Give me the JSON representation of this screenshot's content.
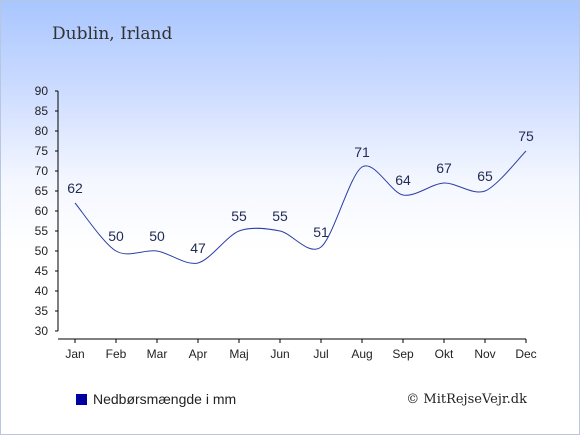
{
  "chart_data": {
    "type": "line",
    "title": "Dublin, Irland",
    "categories": [
      "Jan",
      "Feb",
      "Mar",
      "Apr",
      "Maj",
      "Jun",
      "Jul",
      "Aug",
      "Sep",
      "Okt",
      "Nov",
      "Dec"
    ],
    "series": [
      {
        "name": "Nedbørsmængde i mm",
        "values": [
          62,
          50,
          50,
          47,
          55,
          55,
          51,
          71,
          64,
          67,
          65,
          75
        ],
        "color": "#2b3fa8"
      }
    ],
    "ylim": [
      30,
      90
    ],
    "yticks": [
      30,
      35,
      40,
      45,
      50,
      55,
      60,
      65,
      70,
      75,
      80,
      85,
      90
    ],
    "grid": false,
    "legend_position": "bottom-left",
    "legend_marker_color": "#0000a0"
  },
  "credit": "© MitRejseVejr.dk"
}
